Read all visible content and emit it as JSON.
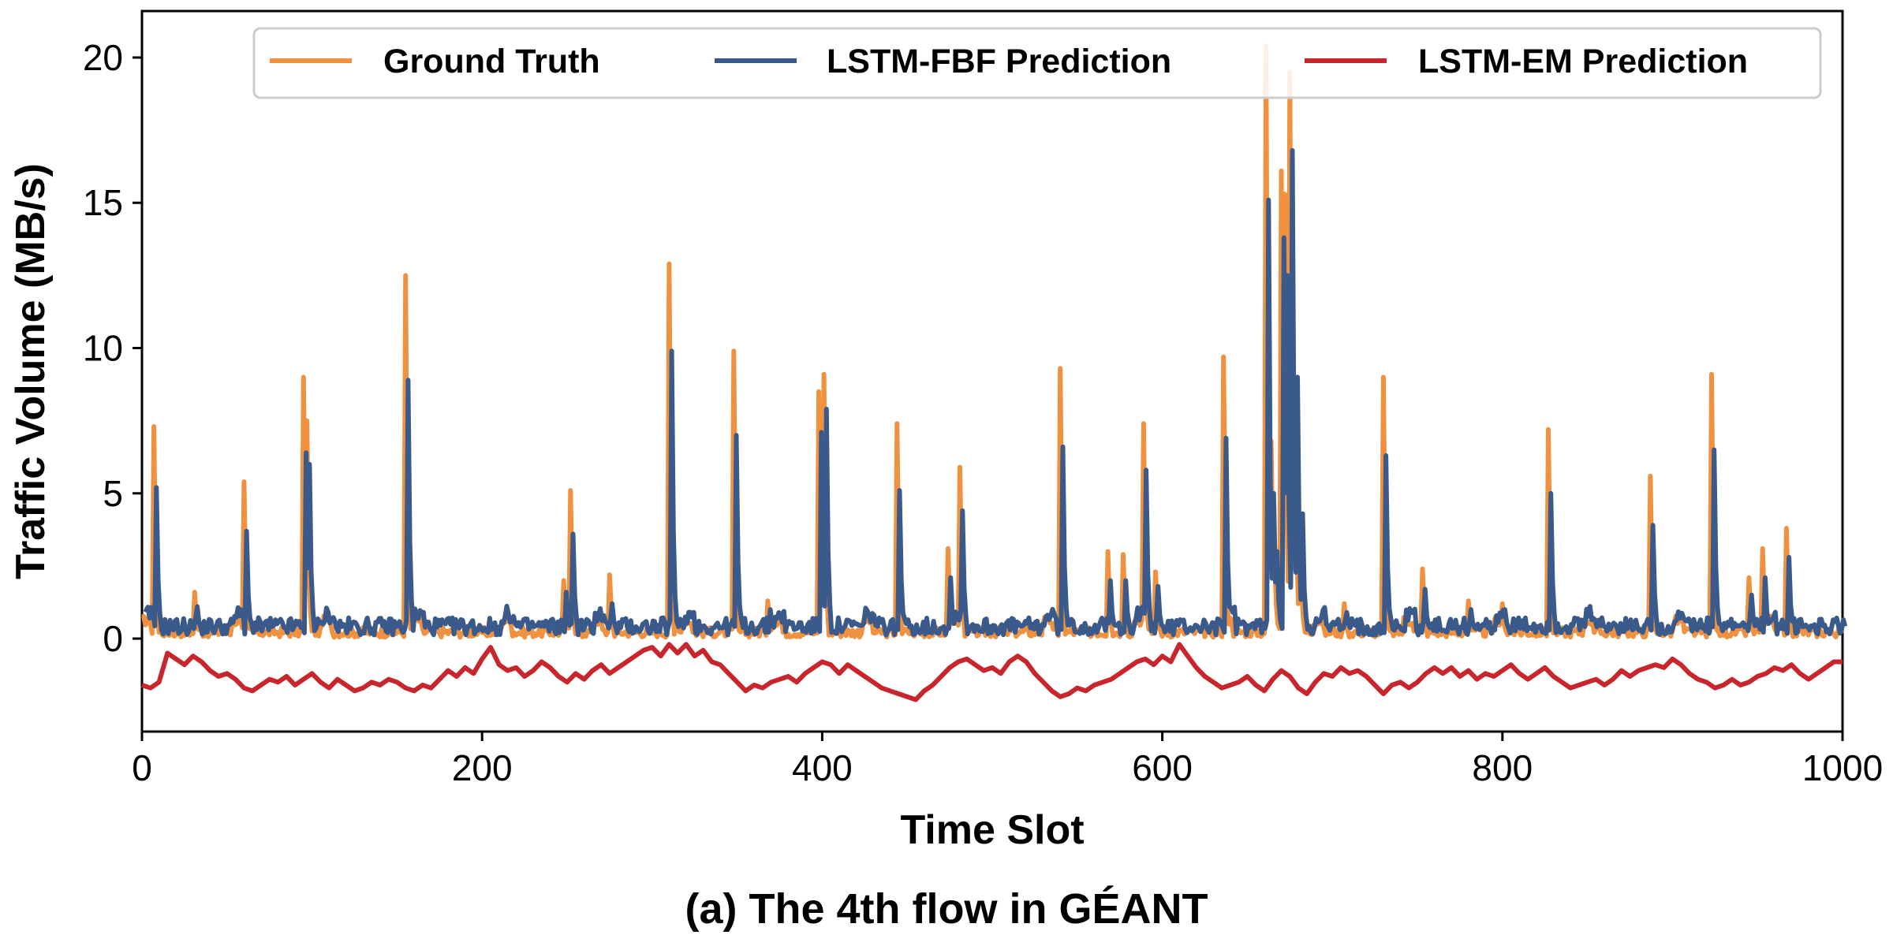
{
  "caption": "(a) The 4th flow in GÉANT",
  "chart_data": {
    "type": "line",
    "title": "",
    "xlabel": "Time Slot",
    "ylabel": "Traffic Volume (MB/s)",
    "xlim": [
      0,
      1000
    ],
    "ylim": [
      -3.2,
      21.6
    ],
    "xticks": [
      0,
      200,
      400,
      600,
      800,
      1000
    ],
    "yticks": [
      0,
      5,
      10,
      15,
      20
    ],
    "grid": false,
    "legend_position": "top",
    "baseline": {
      "gt": 0.15,
      "fbf": 0.3
    },
    "em_curve": [
      [
        0,
        -1.6
      ],
      [
        5,
        -1.7
      ],
      [
        10,
        -1.5
      ],
      [
        15,
        -0.5
      ],
      [
        20,
        -0.7
      ],
      [
        25,
        -0.9
      ],
      [
        30,
        -0.6
      ],
      [
        35,
        -0.8
      ],
      [
        40,
        -1.1
      ],
      [
        45,
        -1.3
      ],
      [
        50,
        -1.2
      ],
      [
        55,
        -1.4
      ],
      [
        60,
        -1.7
      ],
      [
        65,
        -1.8
      ],
      [
        70,
        -1.6
      ],
      [
        75,
        -1.4
      ],
      [
        80,
        -1.5
      ],
      [
        85,
        -1.3
      ],
      [
        90,
        -1.6
      ],
      [
        95,
        -1.4
      ],
      [
        100,
        -1.2
      ],
      [
        105,
        -1.5
      ],
      [
        110,
        -1.7
      ],
      [
        115,
        -1.4
      ],
      [
        120,
        -1.6
      ],
      [
        125,
        -1.8
      ],
      [
        130,
        -1.7
      ],
      [
        135,
        -1.5
      ],
      [
        140,
        -1.6
      ],
      [
        145,
        -1.4
      ],
      [
        150,
        -1.5
      ],
      [
        155,
        -1.7
      ],
      [
        160,
        -1.8
      ],
      [
        165,
        -1.6
      ],
      [
        170,
        -1.7
      ],
      [
        175,
        -1.4
      ],
      [
        180,
        -1.1
      ],
      [
        185,
        -1.3
      ],
      [
        190,
        -1.0
      ],
      [
        195,
        -1.2
      ],
      [
        200,
        -0.7
      ],
      [
        205,
        -0.3
      ],
      [
        210,
        -0.9
      ],
      [
        215,
        -1.1
      ],
      [
        220,
        -1.0
      ],
      [
        225,
        -1.3
      ],
      [
        230,
        -1.1
      ],
      [
        235,
        -0.8
      ],
      [
        240,
        -1.0
      ],
      [
        245,
        -1.3
      ],
      [
        250,
        -1.5
      ],
      [
        255,
        -1.2
      ],
      [
        260,
        -1.4
      ],
      [
        265,
        -1.1
      ],
      [
        270,
        -0.9
      ],
      [
        275,
        -1.2
      ],
      [
        280,
        -1.0
      ],
      [
        285,
        -0.8
      ],
      [
        290,
        -0.6
      ],
      [
        295,
        -0.4
      ],
      [
        300,
        -0.3
      ],
      [
        305,
        -0.6
      ],
      [
        310,
        -0.2
      ],
      [
        315,
        -0.5
      ],
      [
        320,
        -0.2
      ],
      [
        325,
        -0.6
      ],
      [
        330,
        -0.4
      ],
      [
        335,
        -0.8
      ],
      [
        340,
        -0.9
      ],
      [
        345,
        -1.2
      ],
      [
        350,
        -1.5
      ],
      [
        355,
        -1.8
      ],
      [
        360,
        -1.6
      ],
      [
        365,
        -1.7
      ],
      [
        370,
        -1.5
      ],
      [
        375,
        -1.4
      ],
      [
        380,
        -1.3
      ],
      [
        385,
        -1.5
      ],
      [
        390,
        -1.2
      ],
      [
        395,
        -1.0
      ],
      [
        400,
        -0.8
      ],
      [
        405,
        -0.9
      ],
      [
        410,
        -1.2
      ],
      [
        415,
        -0.9
      ],
      [
        420,
        -1.1
      ],
      [
        425,
        -1.3
      ],
      [
        430,
        -1.5
      ],
      [
        435,
        -1.7
      ],
      [
        440,
        -1.8
      ],
      [
        445,
        -1.9
      ],
      [
        450,
        -2.0
      ],
      [
        455,
        -2.1
      ],
      [
        460,
        -1.8
      ],
      [
        465,
        -1.6
      ],
      [
        470,
        -1.3
      ],
      [
        475,
        -1.0
      ],
      [
        480,
        -0.8
      ],
      [
        485,
        -0.7
      ],
      [
        490,
        -0.9
      ],
      [
        495,
        -1.1
      ],
      [
        500,
        -1.0
      ],
      [
        505,
        -1.2
      ],
      [
        510,
        -0.8
      ],
      [
        515,
        -0.6
      ],
      [
        520,
        -0.8
      ],
      [
        525,
        -1.2
      ],
      [
        530,
        -1.5
      ],
      [
        535,
        -1.8
      ],
      [
        540,
        -2.0
      ],
      [
        545,
        -1.9
      ],
      [
        550,
        -1.7
      ],
      [
        555,
        -1.8
      ],
      [
        560,
        -1.6
      ],
      [
        565,
        -1.5
      ],
      [
        570,
        -1.4
      ],
      [
        575,
        -1.2
      ],
      [
        580,
        -1.0
      ],
      [
        585,
        -0.8
      ],
      [
        590,
        -0.7
      ],
      [
        595,
        -0.9
      ],
      [
        600,
        -0.6
      ],
      [
        605,
        -0.8
      ],
      [
        610,
        -0.2
      ],
      [
        615,
        -0.6
      ],
      [
        620,
        -1.0
      ],
      [
        625,
        -1.3
      ],
      [
        630,
        -1.5
      ],
      [
        635,
        -1.7
      ],
      [
        640,
        -1.6
      ],
      [
        645,
        -1.5
      ],
      [
        650,
        -1.3
      ],
      [
        655,
        -1.6
      ],
      [
        660,
        -1.8
      ],
      [
        665,
        -1.4
      ],
      [
        670,
        -1.1
      ],
      [
        675,
        -1.3
      ],
      [
        680,
        -1.7
      ],
      [
        685,
        -1.9
      ],
      [
        690,
        -1.5
      ],
      [
        695,
        -1.2
      ],
      [
        700,
        -1.3
      ],
      [
        705,
        -1.0
      ],
      [
        710,
        -1.2
      ],
      [
        715,
        -1.1
      ],
      [
        720,
        -1.3
      ],
      [
        725,
        -1.6
      ],
      [
        730,
        -1.9
      ],
      [
        735,
        -1.6
      ],
      [
        740,
        -1.5
      ],
      [
        745,
        -1.7
      ],
      [
        750,
        -1.5
      ],
      [
        755,
        -1.2
      ],
      [
        760,
        -1.0
      ],
      [
        765,
        -1.2
      ],
      [
        770,
        -1.0
      ],
      [
        775,
        -1.3
      ],
      [
        780,
        -1.1
      ],
      [
        785,
        -1.4
      ],
      [
        790,
        -1.2
      ],
      [
        795,
        -1.3
      ],
      [
        800,
        -1.1
      ],
      [
        805,
        -0.9
      ],
      [
        810,
        -1.2
      ],
      [
        815,
        -1.4
      ],
      [
        820,
        -1.2
      ],
      [
        825,
        -1.0
      ],
      [
        830,
        -1.3
      ],
      [
        835,
        -1.5
      ],
      [
        840,
        -1.7
      ],
      [
        845,
        -1.6
      ],
      [
        850,
        -1.5
      ],
      [
        855,
        -1.4
      ],
      [
        860,
        -1.6
      ],
      [
        865,
        -1.4
      ],
      [
        870,
        -1.1
      ],
      [
        875,
        -1.3
      ],
      [
        880,
        -1.1
      ],
      [
        885,
        -1.0
      ],
      [
        890,
        -0.9
      ],
      [
        895,
        -1.0
      ],
      [
        900,
        -0.7
      ],
      [
        905,
        -0.9
      ],
      [
        910,
        -1.2
      ],
      [
        915,
        -1.4
      ],
      [
        920,
        -1.5
      ],
      [
        925,
        -1.7
      ],
      [
        930,
        -1.6
      ],
      [
        935,
        -1.4
      ],
      [
        940,
        -1.6
      ],
      [
        945,
        -1.5
      ],
      [
        950,
        -1.3
      ],
      [
        955,
        -1.2
      ],
      [
        960,
        -1.0
      ],
      [
        965,
        -1.1
      ],
      [
        970,
        -0.9
      ],
      [
        975,
        -1.2
      ],
      [
        980,
        -1.4
      ],
      [
        985,
        -1.2
      ],
      [
        990,
        -1.0
      ],
      [
        995,
        -0.8
      ],
      [
        1000,
        -0.8
      ]
    ],
    "spikes": [
      [
        7,
        7.3,
        5.2
      ],
      [
        31,
        1.6,
        1.1
      ],
      [
        60,
        5.4,
        3.7
      ],
      [
        95,
        9.0,
        6.4
      ],
      [
        97,
        7.5,
        6.0
      ],
      [
        155,
        12.5,
        8.9
      ],
      [
        248,
        2.0,
        1.6
      ],
      [
        252,
        5.1,
        3.6
      ],
      [
        275,
        2.2,
        1.2
      ],
      [
        310,
        12.9,
        9.9
      ],
      [
        348,
        9.9,
        7.0
      ],
      [
        368,
        1.3,
        1.0
      ],
      [
        398,
        8.5,
        7.1
      ],
      [
        401,
        9.1,
        7.9
      ],
      [
        444,
        7.4,
        5.1
      ],
      [
        474,
        3.1,
        2.1
      ],
      [
        481,
        5.9,
        4.4
      ],
      [
        540,
        9.3,
        6.6
      ],
      [
        568,
        3.0,
        2.0
      ],
      [
        577,
        2.9,
        2.0
      ],
      [
        589,
        7.4,
        5.8
      ],
      [
        596,
        2.3,
        1.8
      ],
      [
        636,
        9.7,
        6.9
      ],
      [
        661,
        20.4,
        15.1
      ],
      [
        664,
        6.8,
        5.0
      ],
      [
        666,
        3.0,
        3.0
      ],
      [
        670,
        16.1,
        13.8
      ],
      [
        672,
        15.3,
        12.5
      ],
      [
        675,
        19.5,
        16.8
      ],
      [
        678,
        8.9,
        9.0
      ],
      [
        681,
        4.3,
        4.3
      ],
      [
        707,
        1.2,
        0.9
      ],
      [
        730,
        9.0,
        6.3
      ],
      [
        753,
        2.4,
        1.7
      ],
      [
        780,
        1.3,
        1.0
      ],
      [
        800,
        1.2,
        1.0
      ],
      [
        827,
        7.2,
        5.0
      ],
      [
        887,
        5.6,
        3.9
      ],
      [
        923,
        9.1,
        6.5
      ],
      [
        945,
        2.1,
        1.5
      ],
      [
        953,
        3.1,
        2.1
      ],
      [
        967,
        3.8,
        2.8
      ]
    ]
  },
  "series": [
    {
      "name": "Ground Truth",
      "color": "#F0913F"
    },
    {
      "name": "LSTM-FBF Prediction",
      "color": "#3A5A8C"
    },
    {
      "name": "LSTM-EM Prediction",
      "color": "#C8262C"
    }
  ]
}
